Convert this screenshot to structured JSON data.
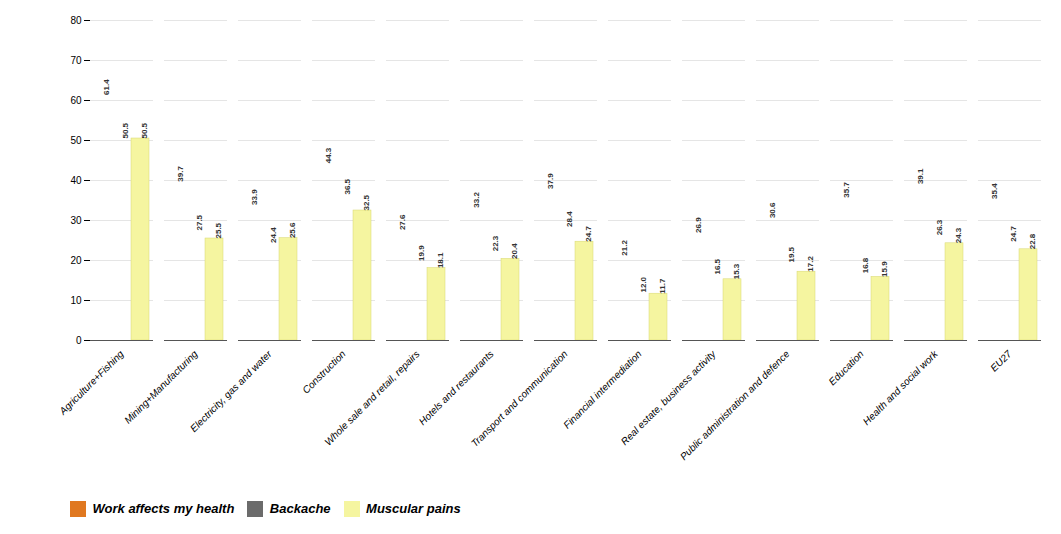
{
  "chart_data": {
    "type": "bar",
    "categories": [
      "Agriculture+Fishing",
      "Mining+Manufacturing",
      "Electricity, gas and water",
      "Construction",
      "Whole sale and retail, repairs",
      "Hotels and restaurants",
      "Transport and communication",
      "Financial intermediation",
      "Real estate, business activity",
      "Public administration and defence",
      "Education",
      "Health and social work",
      "EU27"
    ],
    "series": [
      {
        "name": "Work affects my health",
        "color": "#e07820",
        "values": [
          61.4,
          39.7,
          33.9,
          44.3,
          27.6,
          33.2,
          37.9,
          21.2,
          26.9,
          30.6,
          35.7,
          39.1,
          35.4
        ],
        "value_labels": [
          "61.4",
          "39.7",
          "33.9",
          "44.3",
          "27.6",
          "33.2",
          "37.9",
          "21.2",
          "26.9",
          "30.6",
          "35.7",
          "39.1",
          "35.4"
        ]
      },
      {
        "name": "Backache",
        "color": "#6b6b6b",
        "values": [
          50.5,
          27.5,
          24.4,
          36.5,
          19.9,
          22.3,
          28.4,
          12.0,
          16.5,
          19.5,
          16.8,
          26.3,
          24.7
        ],
        "value_labels": [
          "50.5",
          "27.5",
          "24.4",
          "36.5",
          "19.9",
          "22.3",
          "28.4",
          "12.0",
          "16.5",
          "19.5",
          "16.8",
          "26.3",
          "24.7"
        ]
      },
      {
        "name": "Muscular pains",
        "color": "#f5f5a0",
        "values": [
          50.5,
          25.5,
          25.6,
          32.5,
          18.1,
          20.4,
          24.7,
          11.7,
          15.3,
          17.2,
          15.9,
          24.3,
          22.8
        ],
        "value_labels": [
          "50.5",
          "25.5",
          "25.6",
          "32.5",
          "18.1",
          "20.4",
          "24.7",
          "11.7",
          "15.3",
          "17.2",
          "15.9",
          "24.3",
          "22.8"
        ]
      }
    ],
    "ylim": [
      0,
      80
    ],
    "yticks": [
      0,
      10,
      20,
      30,
      40,
      50,
      60,
      70,
      80
    ],
    "grid": true,
    "data_labels": true,
    "legend": "bottom"
  }
}
